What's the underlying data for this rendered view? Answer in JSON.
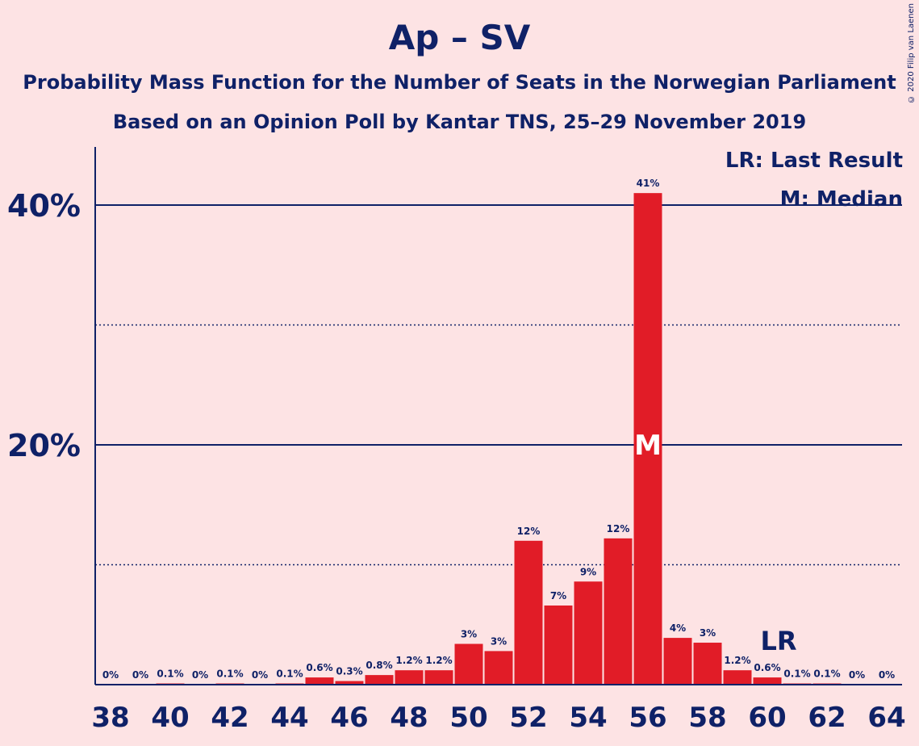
{
  "title": "Ap – SV",
  "subtitle_line1": "Probability Mass Function for the Number of Seats in the Norwegian Parliament",
  "subtitle_line2": "Based on an Opinion Poll by Kantar TNS, 25–29 November 2019",
  "copyright": "© 2020 Filip van Laenen",
  "legend": {
    "lr": "LR: Last Result",
    "m": "M: Median"
  },
  "markers": {
    "median_label": "M",
    "median_seat": 56,
    "last_result_label": "LR",
    "last_result_seat": 60
  },
  "colors": {
    "background": "#FDE3E4",
    "bar": "#E11C27",
    "text": "#0F2167"
  },
  "chart_data": {
    "type": "bar",
    "x": [
      38,
      39,
      40,
      41,
      42,
      43,
      44,
      45,
      46,
      47,
      48,
      49,
      50,
      51,
      52,
      53,
      54,
      55,
      56,
      57,
      58,
      59,
      60,
      61,
      62,
      63,
      64
    ],
    "values": [
      0,
      0,
      0.1,
      0,
      0.1,
      0,
      0.1,
      0.6,
      0.3,
      0.8,
      1.2,
      1.2,
      3.4,
      2.8,
      12.0,
      6.6,
      8.6,
      12.2,
      41.0,
      3.9,
      3.5,
      1.2,
      0.6,
      0.1,
      0.1,
      0,
      0
    ],
    "data_labels": [
      "0%",
      "0%",
      "0.1%",
      "0%",
      "0.1%",
      "0%",
      "0.1%",
      "0.6%",
      "0.3%",
      "0.8%",
      "1.2%",
      "1.2%",
      "3%",
      "3%",
      "12%",
      "7%",
      "9%",
      "12%",
      "41%",
      "4%",
      "3%",
      "1.2%",
      "0.6%",
      "0.1%",
      "0.1%",
      "0%",
      "0%"
    ],
    "x_tick_labels": [
      "38",
      "40",
      "42",
      "44",
      "46",
      "48",
      "50",
      "52",
      "54",
      "56",
      "58",
      "60",
      "62",
      "64"
    ],
    "y_tick_labels": [
      "20%",
      "40%"
    ],
    "y_gridlines_major": [
      20,
      40
    ],
    "y_gridlines_minor": [
      10,
      30
    ],
    "ylim": [
      0,
      45
    ],
    "xlabel": "",
    "ylabel": ""
  }
}
